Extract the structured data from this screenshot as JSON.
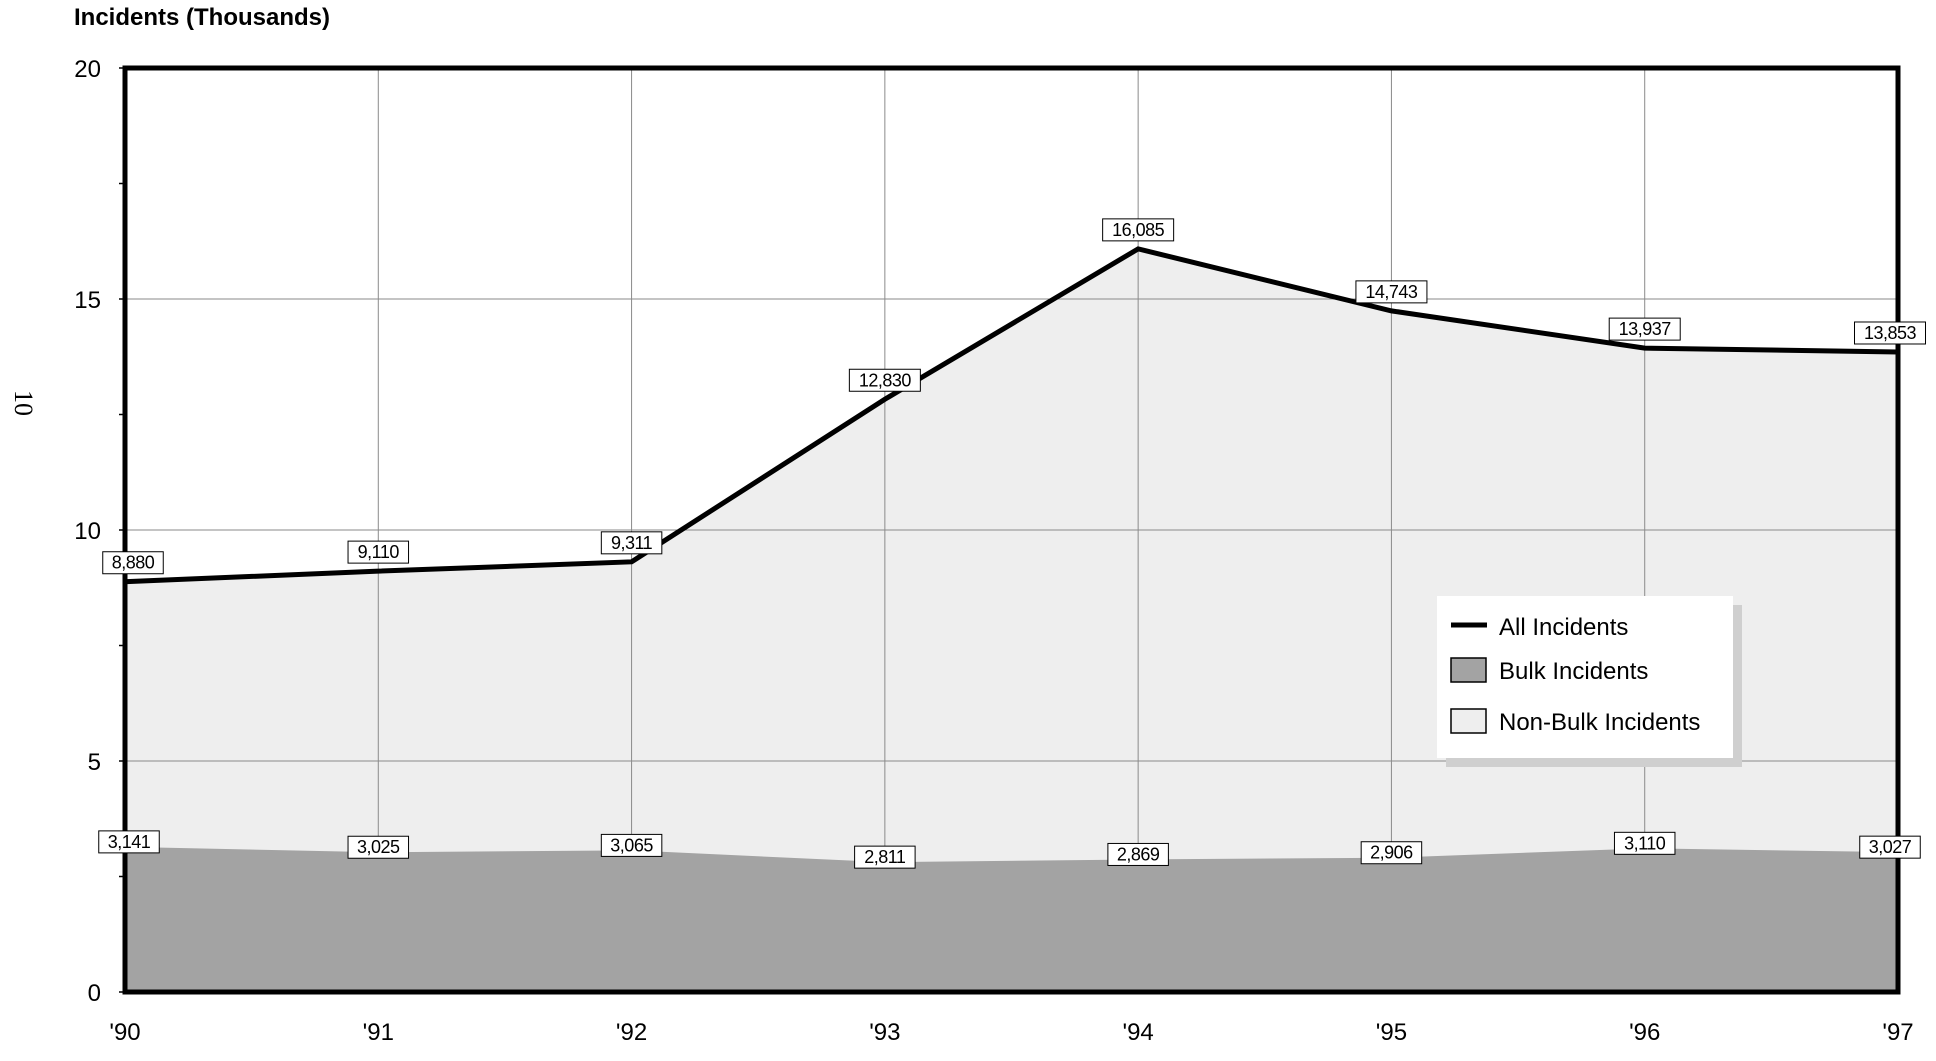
{
  "chart_data": {
    "type": "area",
    "title": "",
    "ylabel": "Incidents (Thousands)",
    "side_mark": "10",
    "xlabel": "",
    "categories": [
      "'90",
      "'91",
      "'92",
      "'93",
      "'94",
      "'95",
      "'96",
      "'97"
    ],
    "ylim": [
      0,
      20
    ],
    "yticks": [
      0,
      5,
      10,
      15,
      20
    ],
    "grid": true,
    "legend_position": "right",
    "series": [
      {
        "name": "All Incidents",
        "style": "line",
        "color": "#000000",
        "values": [
          8.88,
          9.11,
          9.311,
          12.83,
          16.085,
          14.743,
          13.937,
          13.853
        ],
        "labels": [
          "8,880",
          "9,110",
          "9,311",
          "12,830",
          "16,085",
          "14,743",
          "13,937",
          "13,853"
        ]
      },
      {
        "name": "Bulk Incidents",
        "style": "area",
        "color": "#a3a3a3",
        "values": [
          3.141,
          3.025,
          3.065,
          2.811,
          2.869,
          2.906,
          3.11,
          3.027
        ],
        "labels": [
          "3,141",
          "3,025",
          "3,065",
          "2,811",
          "2,869",
          "2,906",
          "3,110",
          "3,027"
        ]
      },
      {
        "name": "Non-Bulk Incidents",
        "style": "area",
        "color": "#eeeeee"
      }
    ]
  }
}
